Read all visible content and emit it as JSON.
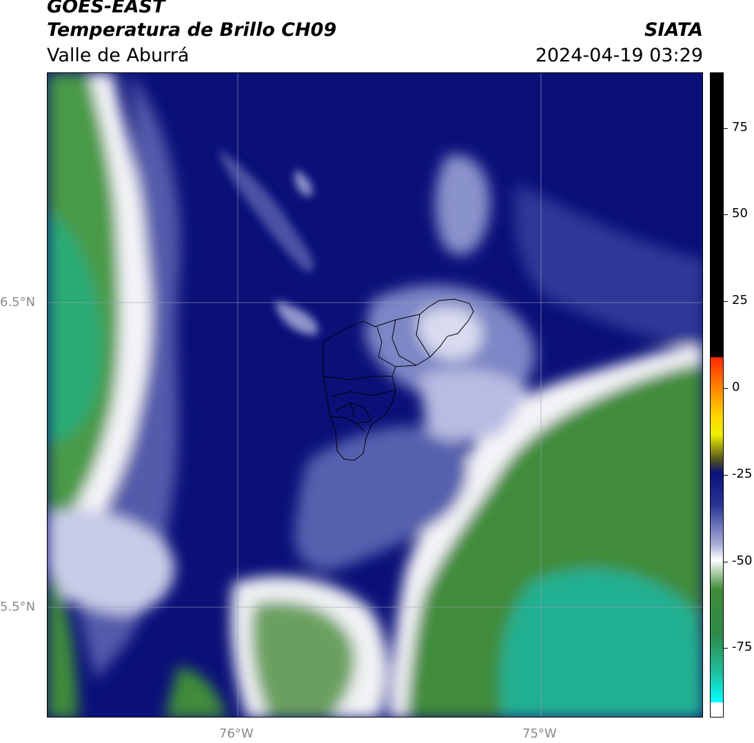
{
  "header": {
    "title": "GOES-EAST",
    "subtitle": "Temperatura de Brillo CH09",
    "region": "Valle de Aburrá",
    "organization": "SIATA",
    "timestamp": "2024-04-19 03:29"
  },
  "map": {
    "lat_labels": [
      "6.5°N",
      "5.5°N"
    ],
    "lon_labels": [
      "76°W",
      "75°W"
    ],
    "colors": {
      "deep_blue": "#0a1078",
      "mid_blue": "#2a3596",
      "light_blue": "#7d86c6",
      "white": "#f4f4f8",
      "green": "#3f8c3a",
      "teal": "#20c0a0",
      "grid": "#9aa0b8",
      "boundary": "#000000"
    }
  },
  "colorbar": {
    "labels": [
      "75",
      "50",
      "25",
      "0",
      "-25",
      "-50",
      "-75"
    ],
    "values": [
      75,
      50,
      25,
      0,
      -25,
      -50,
      -75
    ],
    "range": [
      -95,
      91
    ]
  }
}
